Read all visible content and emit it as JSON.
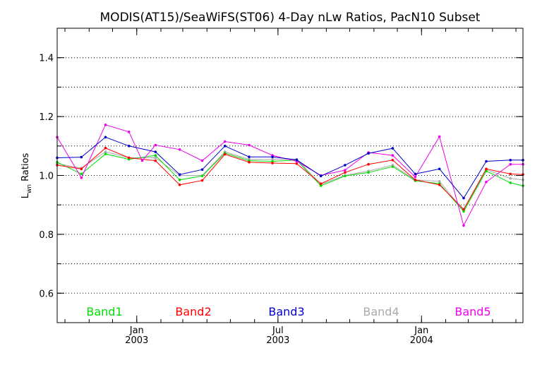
{
  "chart_data": {
    "type": "line",
    "title": "MODIS(AT15)/SeaWiFS(ST06) 4-Day nLw Ratios, PacN10 Subset",
    "ylabel": "Lwn Ratios",
    "ylabel_main": "L",
    "ylabel_sub": "wn",
    "ylabel_rest": " Ratios",
    "xlabel": "",
    "ylim": [
      0.5,
      1.5
    ],
    "xlim": [
      "2002-09-21",
      "2004-05-10"
    ],
    "grid": "horizontal dotted",
    "yticks": [
      {
        "value": 0.6,
        "label": "0.6"
      },
      {
        "value": 0.8,
        "label": "0.8"
      },
      {
        "value": 1.0,
        "label": "1.0"
      },
      {
        "value": 1.2,
        "label": "1.2"
      },
      {
        "value": 1.4,
        "label": "1.4"
      }
    ],
    "xticks": [
      {
        "date": "2003-01-01",
        "line1": "Jan",
        "line2": "2003"
      },
      {
        "date": "2003-07-01",
        "line1": "Jul",
        "line2": "2003"
      },
      {
        "date": "2004-01-01",
        "line1": "Jan",
        "line2": "2004"
      }
    ],
    "x": [
      "2002-09-21",
      "2002-10-22",
      "2002-11-22",
      "2002-12-22",
      "2003-01-25",
      "2003-02-25",
      "2003-03-26",
      "2003-04-24",
      "2003-05-25",
      "2003-06-24",
      "2003-07-25",
      "2003-08-25",
      "2003-09-25",
      "2003-10-25",
      "2003-11-25",
      "2003-12-24",
      "2004-01-24",
      "2004-02-24",
      "2004-03-24",
      "2004-04-24",
      "2004-05-10"
    ],
    "series": [
      {
        "name": "Band1",
        "color": "#00dd00",
        "values": [
          1.045,
          1.005,
          1.073,
          1.055,
          1.068,
          0.985,
          0.998,
          1.076,
          1.05,
          1.048,
          1.052,
          0.965,
          0.998,
          1.01,
          1.03,
          0.982,
          0.972,
          0.878,
          1.015,
          0.975,
          0.965
        ]
      },
      {
        "name": "Band2",
        "color": "#ff0000",
        "values": [
          1.035,
          1.022,
          1.093,
          1.06,
          1.05,
          0.968,
          0.983,
          1.072,
          1.045,
          1.042,
          1.04,
          0.972,
          1.01,
          1.038,
          1.052,
          0.985,
          0.968,
          0.885,
          1.022,
          1.005,
          1.003
        ]
      },
      {
        "name": "Band3",
        "color": "#0000cc",
        "values": [
          1.06,
          1.062,
          1.13,
          1.1,
          1.08,
          1.003,
          1.02,
          1.1,
          1.063,
          1.063,
          1.053,
          0.998,
          1.035,
          1.075,
          1.092,
          1.005,
          1.022,
          0.923,
          1.048,
          1.052,
          1.052
        ]
      },
      {
        "name": "Band4",
        "color": "#aaaaaa",
        "values": [
          1.04,
          1.025,
          1.08,
          1.06,
          1.06,
          1.0,
          1.0,
          1.08,
          1.055,
          1.055,
          1.055,
          0.97,
          1.0,
          1.015,
          1.035,
          0.985,
          0.98,
          0.88,
          1.02,
          0.99,
          0.985
        ]
      },
      {
        "name": "Band5",
        "color": "#ee00ee",
        "values": [
          1.13,
          0.992,
          1.172,
          1.148,
          1.103,
          1.088,
          1.05,
          1.115,
          1.103,
          1.068,
          1.048,
          1.0,
          1.018,
          1.078,
          1.068,
          0.995,
          1.132,
          0.83,
          0.978,
          1.038,
          1.038
        ]
      }
    ],
    "band5_dip": {
      "date": "2003-01-08",
      "value": 1.05
    }
  },
  "legend": [
    "Band1",
    "Band2",
    "Band3",
    "Band4",
    "Band5"
  ]
}
